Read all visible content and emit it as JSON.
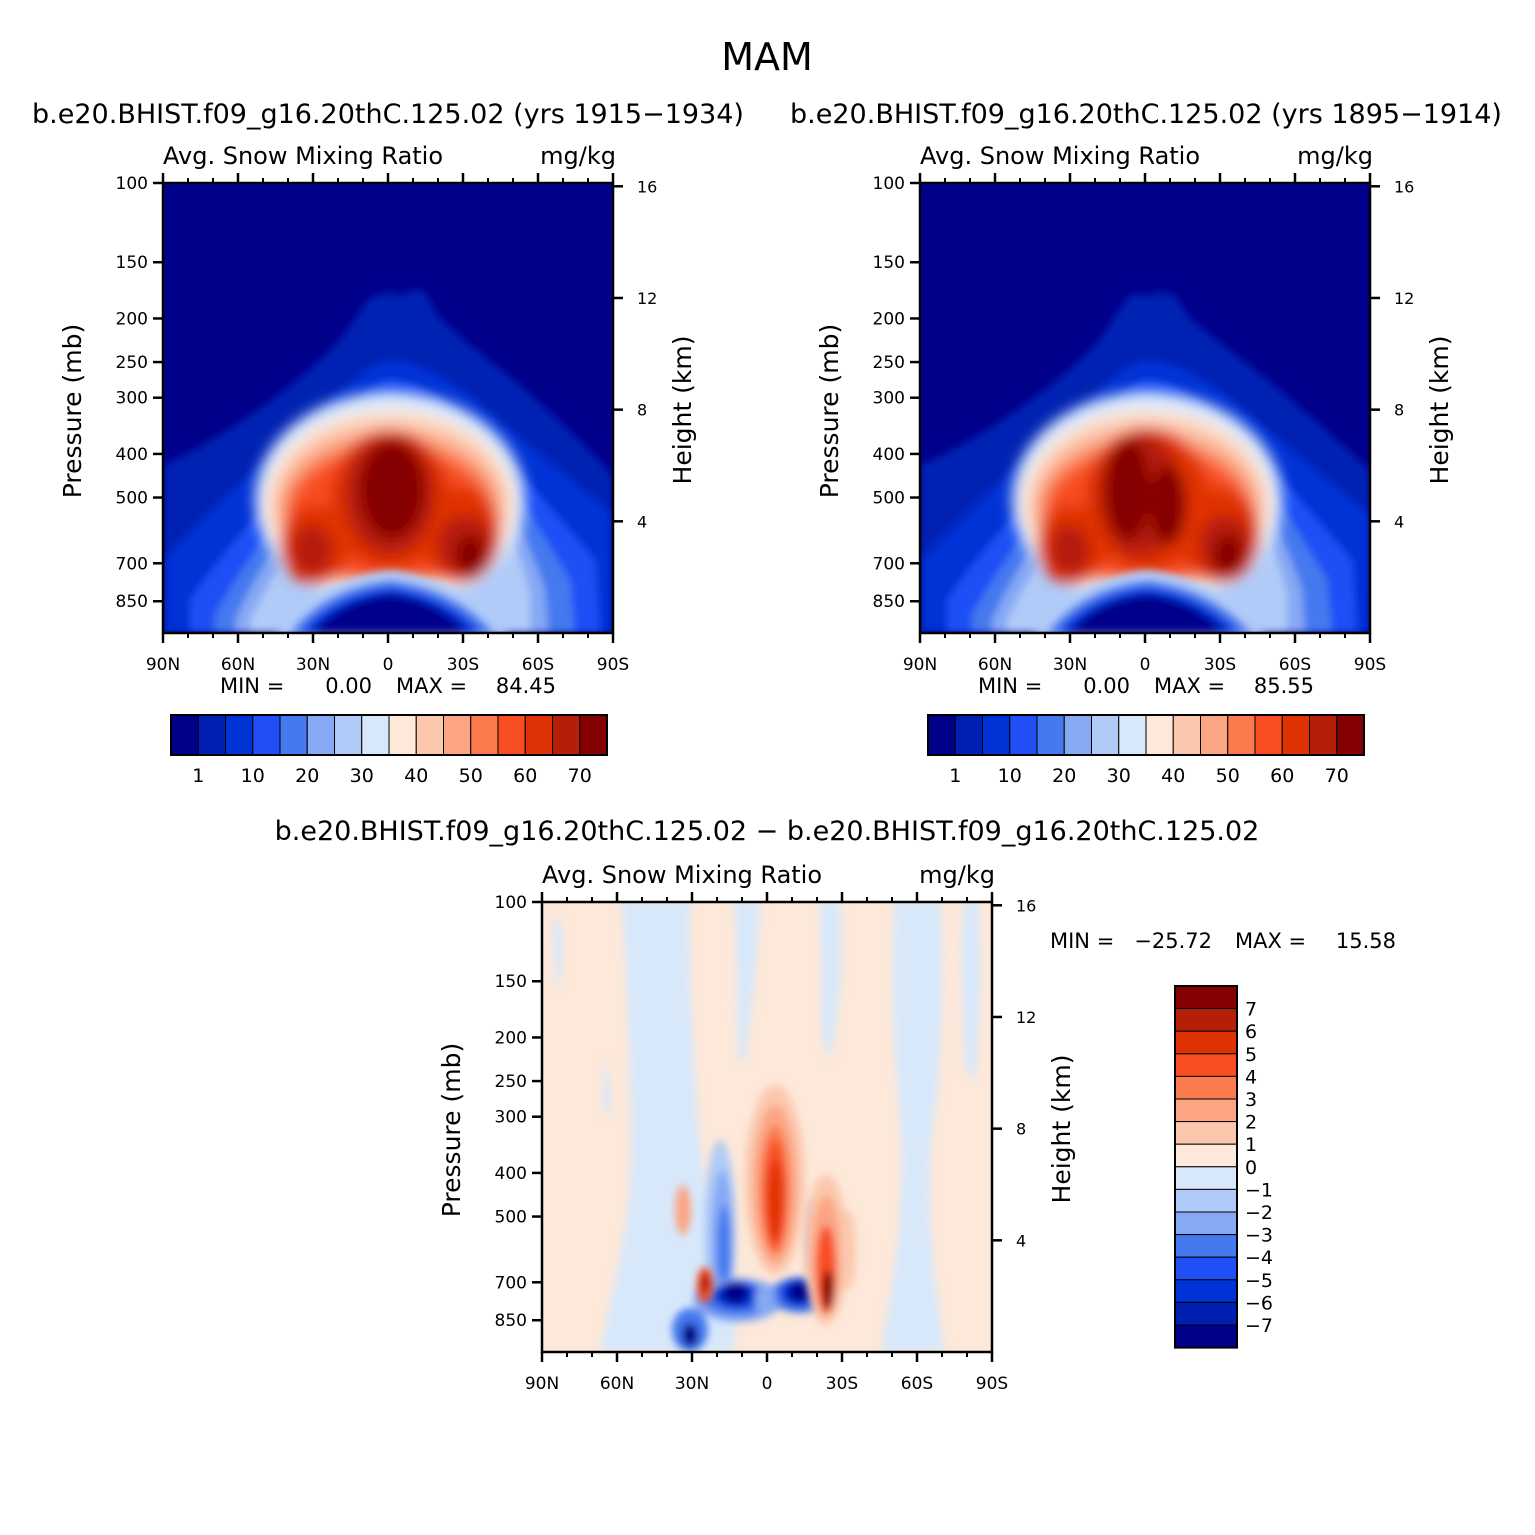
{
  "figure_title": "MAM",
  "chart_data": [
    {
      "type": "heatmap",
      "id": "p1",
      "title": "b.e20.BHIST.f09_g16.20thC.125.02 (yrs 1915−1934)",
      "subtitle_left": "Avg. Snow Mixing Ratio",
      "subtitle_right": "mg/kg",
      "xlabel": "",
      "ylabel": "Pressure (mb)",
      "ylabel_right": "Height (km)",
      "x_tick_labels": [
        "90N",
        "60N",
        "30N",
        "0",
        "30S",
        "60S",
        "90S"
      ],
      "y_ticks": [
        100,
        150,
        200,
        250,
        300,
        400,
        500,
        700,
        850
      ],
      "y_right_ticks": [
        16,
        12,
        8,
        4
      ],
      "ylim_mb": [
        100,
        1000
      ],
      "min_label": "MIN =",
      "min_value": "0.00",
      "max_label": "MAX =",
      "max_value": "84.45",
      "colorbar_labels": [
        "1",
        "10",
        "20",
        "30",
        "40",
        "50",
        "60",
        "70"
      ]
    },
    {
      "type": "heatmap",
      "id": "p2",
      "title": "b.e20.BHIST.f09_g16.20thC.125.02 (yrs 1895−1914)",
      "subtitle_left": "Avg. Snow Mixing Ratio",
      "subtitle_right": "mg/kg",
      "xlabel": "",
      "ylabel": "Pressure (mb)",
      "ylabel_right": "Height (km)",
      "x_tick_labels": [
        "90N",
        "60N",
        "30N",
        "0",
        "30S",
        "60S",
        "90S"
      ],
      "y_ticks": [
        100,
        150,
        200,
        250,
        300,
        400,
        500,
        700,
        850
      ],
      "y_right_ticks": [
        16,
        12,
        8,
        4
      ],
      "ylim_mb": [
        100,
        1000
      ],
      "min_label": "MIN =",
      "min_value": "0.00",
      "max_label": "MAX =",
      "max_value": "85.55",
      "colorbar_labels": [
        "1",
        "10",
        "20",
        "30",
        "40",
        "50",
        "60",
        "70"
      ]
    },
    {
      "type": "heatmap",
      "id": "p3",
      "title": "b.e20.BHIST.f09_g16.20thC.125.02 − b.e20.BHIST.f09_g16.20thC.125.02",
      "subtitle_left": "Avg. Snow Mixing Ratio",
      "subtitle_right": "mg/kg",
      "xlabel": "",
      "ylabel": "Pressure (mb)",
      "ylabel_right": "Height (km)",
      "x_tick_labels": [
        "90N",
        "60N",
        "30N",
        "0",
        "30S",
        "60S",
        "90S"
      ],
      "y_ticks": [
        100,
        150,
        200,
        250,
        300,
        400,
        500,
        700,
        850
      ],
      "y_right_ticks": [
        16,
        12,
        8,
        4
      ],
      "ylim_mb": [
        100,
        1000
      ],
      "min_label": "MIN =",
      "min_value": "−25.72",
      "max_label": "MAX =",
      "max_value": "15.58",
      "colorbar_labels": [
        "7",
        "6",
        "5",
        "4",
        "3",
        "2",
        "1",
        "0",
        "−1",
        "−2",
        "−3",
        "−4",
        "−5",
        "−6",
        "−7"
      ]
    }
  ],
  "colors": {
    "levels_abs": [
      "#00008b",
      "#0020b2",
      "#0033d6",
      "#1f4ff5",
      "#4479ef",
      "#86a9f4",
      "#b0cbf8",
      "#d8e8fb",
      "#fde8d9",
      "#fcc8ad",
      "#fba584",
      "#f97a4d",
      "#f84e22",
      "#e03305",
      "#b51f08",
      "#850000"
    ],
    "levels_diff": [
      "#850000",
      "#b51f08",
      "#e03305",
      "#f84e22",
      "#f97a4d",
      "#fba584",
      "#fcc8ad",
      "#fde8d9",
      "#d8e8fb",
      "#b0cbf8",
      "#86a9f4",
      "#4479ef",
      "#1f4ff5",
      "#0033d6",
      "#0020b2",
      "#00008b"
    ]
  }
}
